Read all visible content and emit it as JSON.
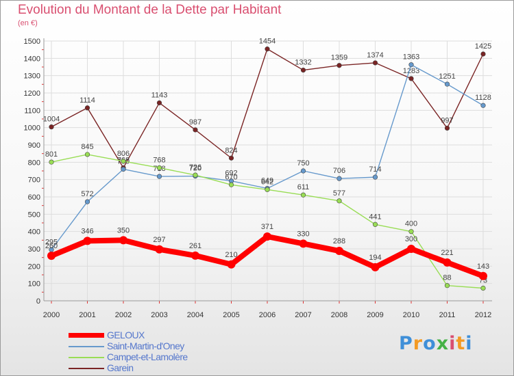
{
  "title": "Evolution du Montant de la Dette par Habitant",
  "subtitle": "(en €)",
  "brand": {
    "letters": [
      "P",
      "r",
      "o",
      "x",
      "i",
      "t",
      "i"
    ],
    "colors": [
      "#3f8fd8",
      "#f39a24",
      "#3f8fd8",
      "#45b246",
      "#d94f70",
      "#f39a24",
      "#3f8fd8"
    ]
  },
  "chart_data": {
    "type": "line",
    "title": "Evolution du Montant de la Dette par Habitant",
    "subtitle": "(en €)",
    "xlabel": "",
    "ylabel": "",
    "x": [
      "2000",
      "2001",
      "2002",
      "2003",
      "2004",
      "2005",
      "2006",
      "2007",
      "2008",
      "2009",
      "2010",
      "2011",
      "2012"
    ],
    "ylim": [
      0,
      1500
    ],
    "yticks": [
      "0",
      "100",
      "200",
      "300",
      "400",
      "500",
      "600",
      "700",
      "800",
      "900",
      "1000",
      "1100",
      "1200",
      "1300",
      "1400",
      "1500"
    ],
    "grid": true,
    "legend_position": "bottom-left",
    "series": [
      {
        "name": "Garein",
        "color": "#7a2424",
        "values": [
          1004,
          1114,
          768,
          1143,
          987,
          824,
          1454,
          1332,
          1359,
          1374,
          1283,
          997,
          1425
        ],
        "labels": [
          "1004",
          "1114",
          "768",
          "1143",
          "987",
          "824",
          "1454",
          "1332",
          "1359",
          "1374",
          "1283",
          "997",
          "1425"
        ]
      },
      {
        "name": "Saint-Martin-d'Oney",
        "color": "#6699cc",
        "values": [
          295,
          572,
          760,
          718,
          720,
          692,
          649,
          750,
          706,
          714,
          1363,
          1251,
          1128
        ],
        "labels": [
          "295",
          "572",
          "760",
          "718",
          "720",
          "692",
          "649",
          "750",
          "706",
          "714",
          "1363",
          "1251",
          "1128"
        ]
      },
      {
        "name": "Campet-et-Lamolère",
        "color": "#99dd55",
        "values": [
          801,
          845,
          806,
          768,
          726,
          670,
          642,
          611,
          577,
          441,
          400,
          88,
          73
        ],
        "labels": [
          "801",
          "845",
          "806",
          "768",
          "726",
          "670",
          "642",
          "611",
          "577",
          "441",
          "400",
          "88",
          "73"
        ]
      },
      {
        "name": "GELOUX",
        "color": "#ff0000",
        "values": [
          260,
          346,
          350,
          297,
          261,
          210,
          371,
          330,
          288,
          194,
          300,
          221,
          143
        ],
        "labels": [
          "260",
          "346",
          "350",
          "297",
          "261",
          "210",
          "371",
          "330",
          "288",
          "194",
          "300",
          "221",
          "143"
        ]
      }
    ],
    "legend": [
      "GELOUX",
      "Saint-Martin-d'Oney",
      "Campet-et-Lamolère",
      "Garein"
    ]
  }
}
